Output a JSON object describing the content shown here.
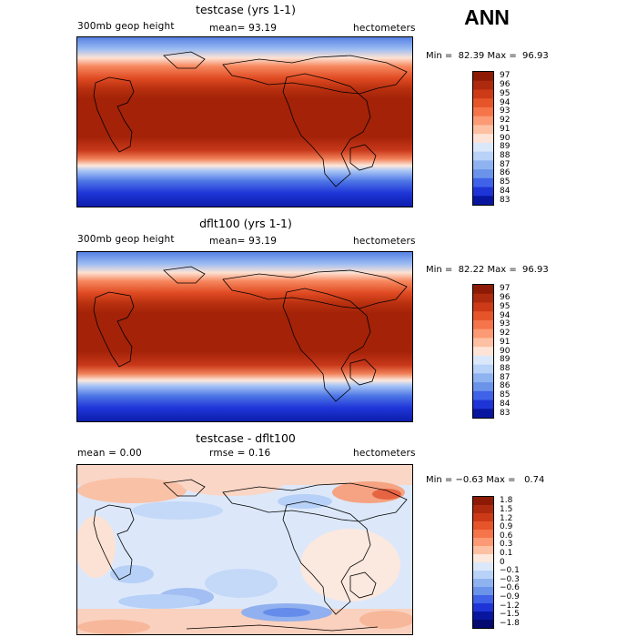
{
  "season": "ANN",
  "panels": [
    {
      "title": "testcase (yrs 1-1)",
      "left_label": "300mb geop height",
      "mid_label": "mean=  93.19",
      "right_label": "hectometers",
      "minmax": "Min =  82.39 Max =  96.93",
      "colorbar": [
        "97",
        "96",
        "95",
        "94",
        "93",
        "92",
        "91",
        "90",
        "89",
        "88",
        "87",
        "86",
        "85",
        "84",
        "83"
      ],
      "colors": [
        "#8c1a05",
        "#ae2a0e",
        "#cd3a17",
        "#e65429",
        "#f5744a",
        "#fb9a74",
        "#fdc0a3",
        "#fee3d6",
        "#dbe8fa",
        "#b9d2f7",
        "#8fb3f0",
        "#6b93ea",
        "#3f62e8",
        "#1f34d6",
        "#08169f"
      ]
    },
    {
      "title": "dflt100 (yrs 1-1)",
      "left_label": "300mb geop height",
      "mid_label": "mean=  93.19",
      "right_label": "hectometers",
      "minmax": "Min =  82.22 Max =  96.93",
      "colorbar": [
        "97",
        "96",
        "95",
        "94",
        "93",
        "92",
        "91",
        "90",
        "89",
        "88",
        "87",
        "86",
        "85",
        "84",
        "83"
      ],
      "colors": [
        "#8c1a05",
        "#ae2a0e",
        "#cd3a17",
        "#e65429",
        "#f5744a",
        "#fb9a74",
        "#fdc0a3",
        "#fee3d6",
        "#dbe8fa",
        "#b9d2f7",
        "#8fb3f0",
        "#6b93ea",
        "#3f62e8",
        "#1f34d6",
        "#08169f"
      ]
    },
    {
      "title": "testcase - dflt100",
      "left_label": "mean =    0.00",
      "mid_label": "rmse =    0.16",
      "right_label": "hectometers",
      "minmax": "Min = −0.63 Max =   0.74",
      "colorbar": [
        "1.8",
        "1.5",
        "1.2",
        "0.9",
        "0.6",
        "0.3",
        "0.1",
        "0",
        "−0.1",
        "−0.3",
        "−0.6",
        "−0.9",
        "−1.2",
        "−1.5",
        "−1.8"
      ],
      "colors": [
        "#8c1a05",
        "#ae2a0e",
        "#cd3a17",
        "#e65429",
        "#f5744a",
        "#fb9a74",
        "#fdc0a3",
        "#fde8dd",
        "#dbe8fa",
        "#b9d2f7",
        "#8fb3f0",
        "#6b93ea",
        "#3f62e8",
        "#1f34d6",
        "#08169f",
        "#040a70"
      ]
    }
  ]
}
